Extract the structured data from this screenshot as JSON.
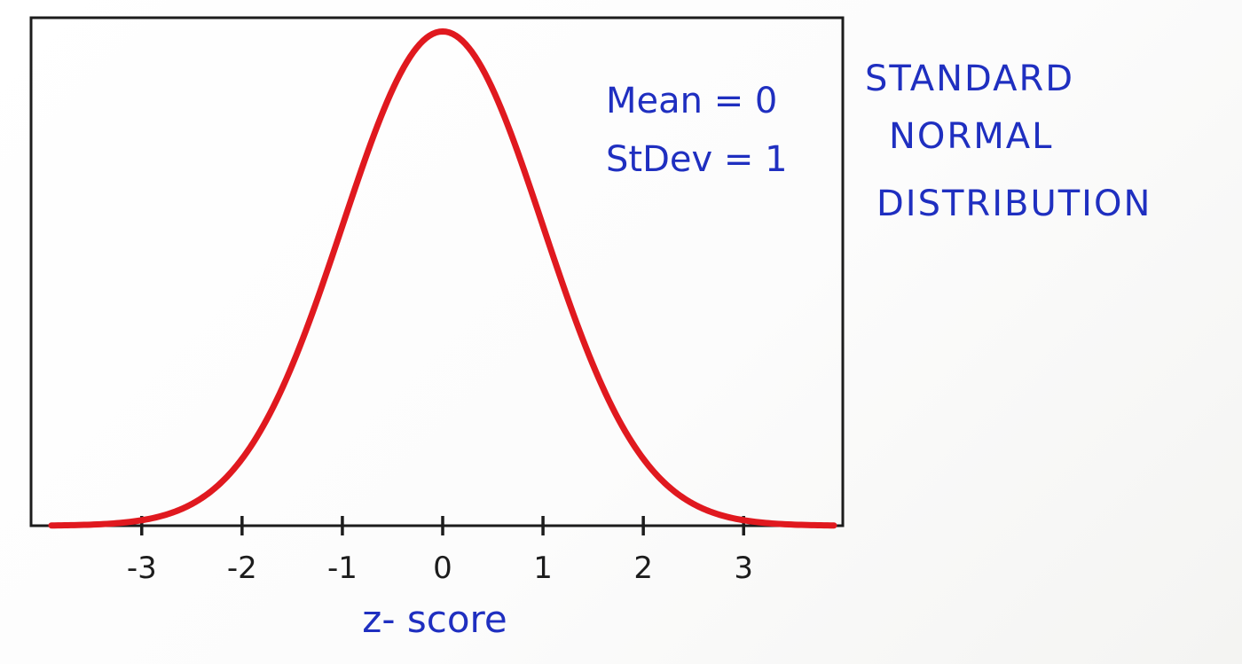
{
  "chart_data": {
    "type": "line",
    "title_lines": [
      "STANDARD",
      "NORMAL",
      "DISTRIBUTION"
    ],
    "xlabel": "z- score",
    "ylabel": "",
    "annotations": [
      "Mean = 0",
      "StDev = 1"
    ],
    "xlim": [
      -3.9,
      3.9
    ],
    "ylim": [
      0,
      0.41
    ],
    "x_ticks": [
      -3,
      -2,
      -1,
      0,
      1,
      2,
      3
    ],
    "x_tick_labels": [
      "-3",
      "-2",
      "-1",
      "0",
      "1",
      "2",
      "3"
    ],
    "grid": false,
    "series": [
      {
        "mean": 0,
        "stdev": 1,
        "x": [
          -3.9,
          -3.5,
          -3.0,
          -2.5,
          -2.0,
          -1.5,
          -1.0,
          -0.5,
          0.0,
          0.5,
          1.0,
          1.5,
          2.0,
          2.5,
          3.0,
          3.5,
          3.9
        ],
        "y": [
          0.0002,
          0.0009,
          0.0044,
          0.0175,
          0.054,
          0.1295,
          0.242,
          0.3521,
          0.3989,
          0.3521,
          0.242,
          0.1295,
          0.054,
          0.0175,
          0.0044,
          0.0009,
          0.0002
        ],
        "color": "#e0191f"
      }
    ]
  },
  "colors": {
    "curve": "#e0191f",
    "annotation_ink": "#1f2fc0",
    "frame_ink": "#1c1c1c"
  }
}
